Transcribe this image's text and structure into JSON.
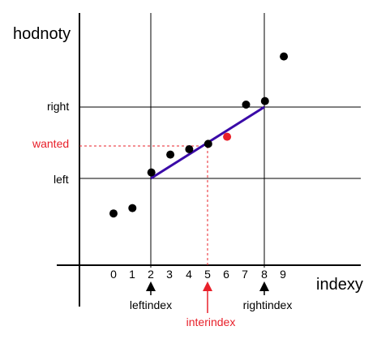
{
  "axis": {
    "y_label": "hodnoty",
    "x_label": "indexy"
  },
  "x_ticks": [
    "0",
    "1",
    "2",
    "3",
    "4",
    "5",
    "6",
    "7",
    "8",
    "9"
  ],
  "levels": {
    "right": "right",
    "wanted": "wanted",
    "left": "left"
  },
  "markers": {
    "left_index": "leftindex",
    "inter_index": "interindex",
    "right_index": "rightindex"
  },
  "colors": {
    "accent_red": "#e8202a",
    "interp_line": "#3a0aa8",
    "ink": "#000000"
  },
  "chart_data": {
    "type": "scatter",
    "x": [
      0,
      1,
      2,
      3,
      4,
      5,
      7,
      8,
      9
    ],
    "y": [
      1.45,
      1.6,
      2.6,
      3.1,
      3.25,
      3.4,
      4.5,
      4.6,
      5.85
    ],
    "wanted_point": {
      "x": 6,
      "y": 3.6
    },
    "interpolation_segment": {
      "from": [
        2,
        2.6
      ],
      "to": [
        8,
        4.6
      ]
    },
    "guides": {
      "left_index": 2,
      "right_index": 8,
      "inter_index": 5
    },
    "xlim": [
      -1.8,
      10.5
    ],
    "ylim": [
      -1.0,
      7.5
    ],
    "xlabel": "indexy",
    "ylabel": "hodnoty"
  }
}
